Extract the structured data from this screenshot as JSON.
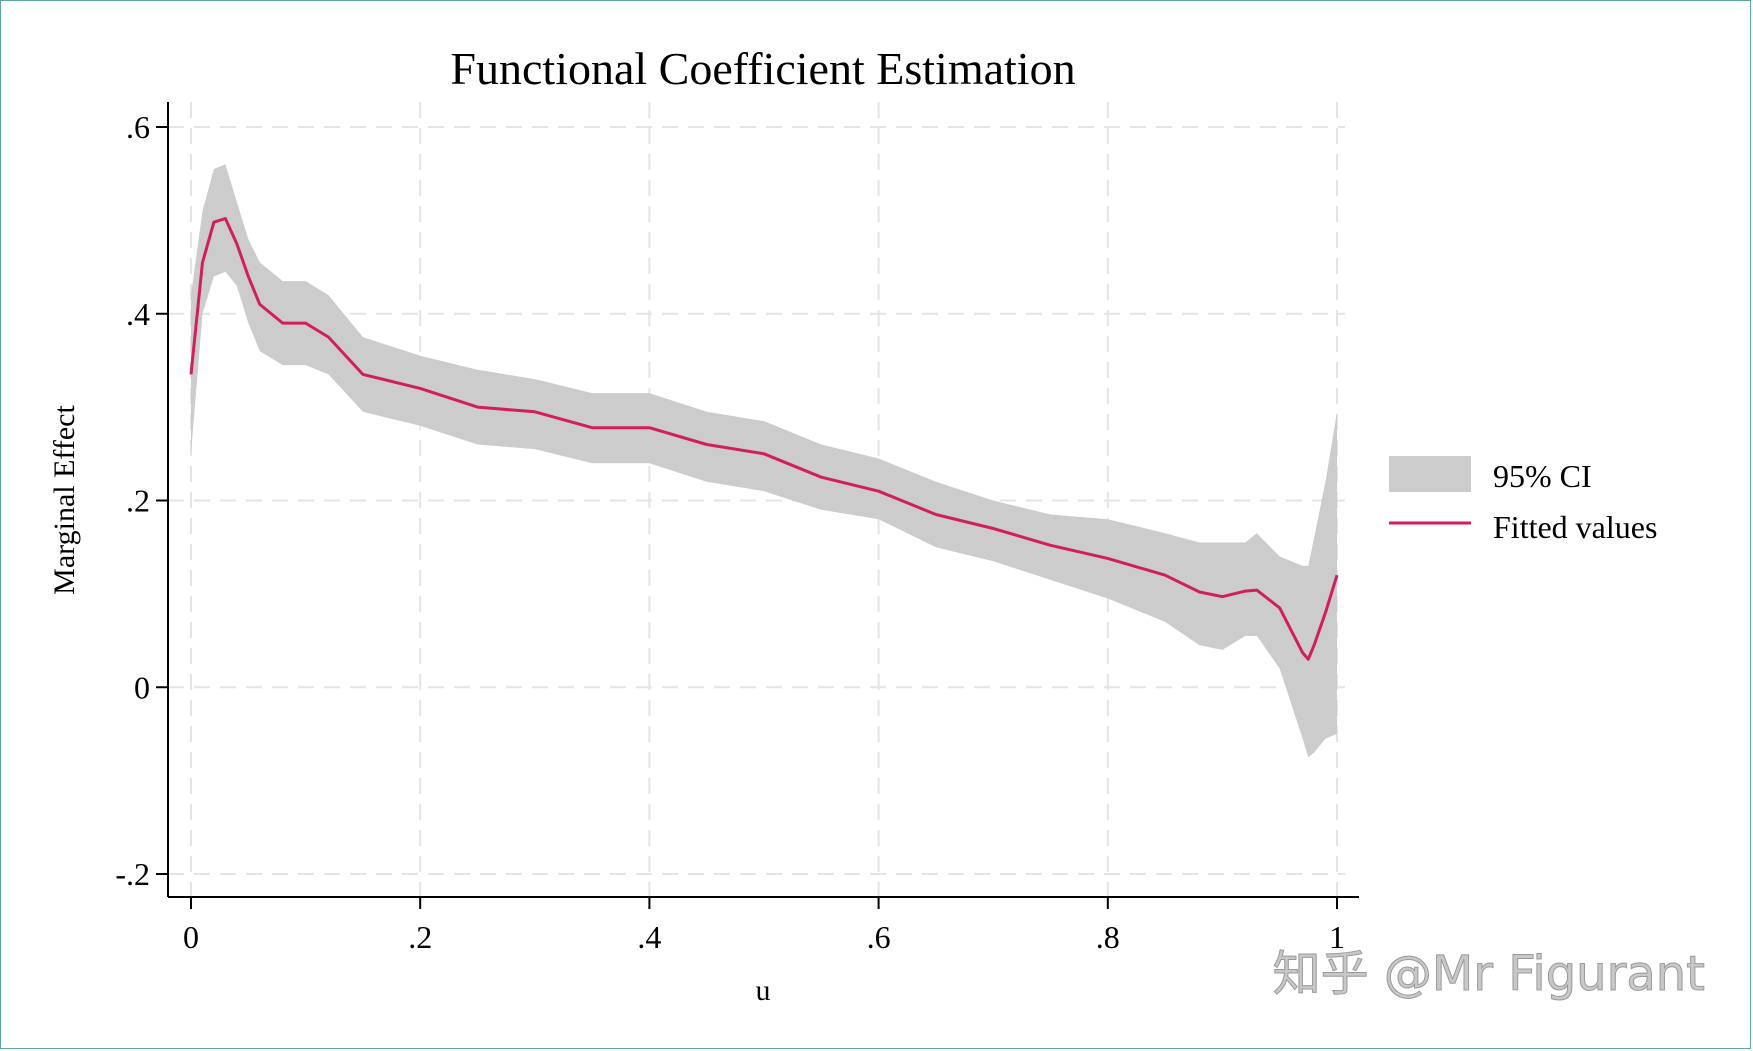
{
  "chart_data": {
    "type": "line",
    "title": "Functional Coefficient Estimation",
    "xlabel": "u",
    "ylabel": "Marginal Effect",
    "xlim": [
      0,
      1
    ],
    "ylim": [
      -0.2,
      0.6
    ],
    "x_ticks": [
      {
        "value": 0,
        "label": "0"
      },
      {
        "value": 0.2,
        "label": ".2"
      },
      {
        "value": 0.4,
        "label": ".4"
      },
      {
        "value": 0.6,
        "label": ".6"
      },
      {
        "value": 0.8,
        "label": ".8"
      },
      {
        "value": 1,
        "label": "1"
      }
    ],
    "y_ticks": [
      {
        "value": -0.2,
        "label": "-.2"
      },
      {
        "value": 0,
        "label": "0"
      },
      {
        "value": 0.2,
        "label": ".2"
      },
      {
        "value": 0.4,
        "label": ".4"
      },
      {
        "value": 0.6,
        "label": ".6"
      }
    ],
    "grid": true,
    "legend_position": "right",
    "series": [
      {
        "name": "95% CI",
        "kind": "band",
        "color": "#cccccc",
        "x": [
          0,
          0.01,
          0.02,
          0.03,
          0.04,
          0.05,
          0.06,
          0.08,
          0.1,
          0.12,
          0.15,
          0.2,
          0.25,
          0.3,
          0.35,
          0.4,
          0.45,
          0.5,
          0.55,
          0.6,
          0.65,
          0.7,
          0.75,
          0.8,
          0.85,
          0.88,
          0.9,
          0.92,
          0.93,
          0.95,
          0.97,
          0.975,
          0.98,
          0.99,
          1
        ],
        "lower": [
          0.25,
          0.4,
          0.44,
          0.445,
          0.43,
          0.39,
          0.36,
          0.345,
          0.345,
          0.335,
          0.295,
          0.28,
          0.26,
          0.255,
          0.24,
          0.24,
          0.22,
          0.21,
          0.19,
          0.18,
          0.15,
          0.135,
          0.115,
          0.095,
          0.07,
          0.045,
          0.04,
          0.055,
          0.055,
          0.02,
          -0.055,
          -0.075,
          -0.07,
          -0.055,
          -0.05
        ],
        "upper": [
          0.42,
          0.51,
          0.555,
          0.56,
          0.52,
          0.48,
          0.455,
          0.435,
          0.435,
          0.42,
          0.375,
          0.355,
          0.34,
          0.33,
          0.315,
          0.315,
          0.295,
          0.285,
          0.26,
          0.245,
          0.22,
          0.2,
          0.185,
          0.18,
          0.165,
          0.155,
          0.155,
          0.155,
          0.165,
          0.14,
          0.13,
          0.13,
          0.16,
          0.22,
          0.295
        ]
      },
      {
        "name": "Fitted values",
        "kind": "line",
        "color": "#d01f5a",
        "x": [
          0,
          0.01,
          0.02,
          0.03,
          0.04,
          0.05,
          0.06,
          0.08,
          0.1,
          0.12,
          0.15,
          0.2,
          0.25,
          0.3,
          0.35,
          0.4,
          0.45,
          0.5,
          0.55,
          0.6,
          0.65,
          0.7,
          0.75,
          0.8,
          0.85,
          0.88,
          0.9,
          0.92,
          0.93,
          0.95,
          0.97,
          0.975,
          0.98,
          0.99,
          1
        ],
        "y": [
          0.335,
          0.455,
          0.498,
          0.502,
          0.475,
          0.44,
          0.41,
          0.39,
          0.39,
          0.375,
          0.335,
          0.32,
          0.3,
          0.295,
          0.278,
          0.278,
          0.26,
          0.25,
          0.225,
          0.21,
          0.185,
          0.17,
          0.152,
          0.138,
          0.12,
          0.102,
          0.097,
          0.103,
          0.104,
          0.085,
          0.037,
          0.03,
          0.045,
          0.08,
          0.12
        ]
      }
    ]
  },
  "watermark": {
    "text": "知乎 @Mr Figurant"
  },
  "colors": {
    "band": "#cccccc",
    "line": "#d01f5a",
    "axis": "#000000",
    "grid": "#e4e4e4"
  }
}
